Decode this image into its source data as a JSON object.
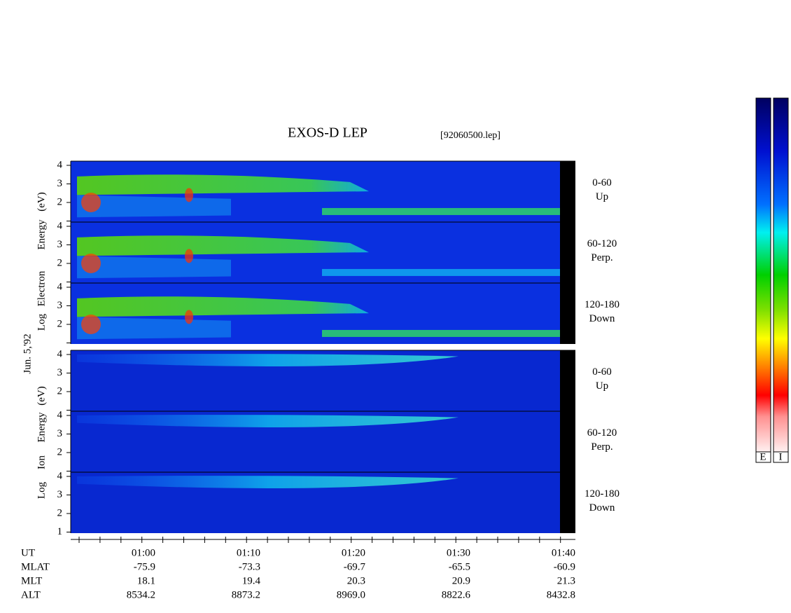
{
  "title": "EXOS-D LEP",
  "file": "[92060500.lep]",
  "date": "Jun. 5,'92",
  "electron_axis_label": [
    "Log",
    "Electron",
    "Energy",
    "(eV)"
  ],
  "ion_axis_label": [
    "Log",
    "Ion",
    "Energy",
    "(eV)"
  ],
  "electron_panels": [
    {
      "tick_labels": [
        "2",
        "3",
        "4"
      ],
      "pitch": "0-60",
      "direction": "Up"
    },
    {
      "tick_labels": [
        "2",
        "3",
        "4"
      ],
      "pitch": "60-120",
      "direction": "Perp."
    },
    {
      "tick_labels": [
        "2",
        "3",
        "4"
      ],
      "pitch": "120-180",
      "direction": "Down"
    }
  ],
  "ion_panels": [
    {
      "tick_labels": [
        "2",
        "3",
        "4"
      ],
      "pitch": "0-60",
      "direction": "Up"
    },
    {
      "tick_labels": [
        "2",
        "3",
        "4"
      ],
      "pitch": "60-120",
      "direction": "Perp."
    },
    {
      "tick_labels": [
        "1",
        "2",
        "3",
        "4"
      ],
      "pitch": "120-180",
      "direction": "Down"
    }
  ],
  "time_axis": {
    "rows": [
      {
        "name": "UT",
        "values": [
          "01:00",
          "01:10",
          "01:20",
          "01:30",
          "01:40"
        ]
      },
      {
        "name": "MLAT",
        "values": [
          "-75.9",
          "-73.3",
          "-69.7",
          "-65.5",
          "-60.9"
        ]
      },
      {
        "name": "MLT",
        "values": [
          "18.1",
          "19.4",
          "20.3",
          "20.9",
          "21.3"
        ]
      },
      {
        "name": "ALT",
        "values": [
          "8534.2",
          "8873.2",
          "8969.0",
          "8822.6",
          "8432.8"
        ]
      }
    ]
  },
  "colorbar_labels": [
    "E",
    "I"
  ]
}
